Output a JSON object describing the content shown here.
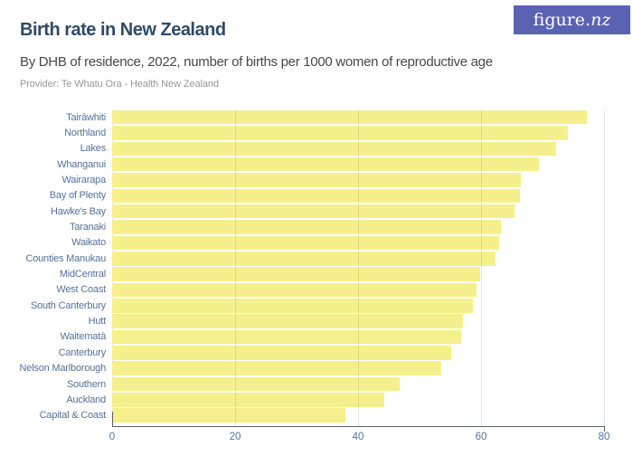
{
  "header": {
    "title": "Birth rate in New Zealand",
    "subtitle": "By DHB of residence, 2022, number of births per 1000 women of reproductive age",
    "provider": "Provider: Te Whatu Ora - Health New Zealand",
    "logo_text_main": "figure.",
    "logo_text_suffix": "nz"
  },
  "colors": {
    "bar": "#F6F08C",
    "title": "#2E4A66",
    "subtitle_text": "#484848",
    "provider_text": "#979797",
    "axis_label": "#54719B",
    "axis_line": "#59616E",
    "gridline": "#E2E2E2",
    "logo_background": "#5A62B4",
    "logo_text": "#FFFFFF"
  },
  "chart_data": {
    "type": "bar",
    "orientation": "horizontal",
    "title": "Birth rate in New Zealand",
    "subtitle": "By DHB of residence, 2022, number of births per 1000 women of reproductive age",
    "xlabel": "",
    "ylabel": "DHB of residence",
    "xlim": [
      0,
      80
    ],
    "xticks": [
      0,
      20,
      40,
      60,
      80
    ],
    "grid": true,
    "legend": false,
    "categories": [
      "Tairāwhiti",
      "Northland",
      "Lakes",
      "Whanganui",
      "Wairarapa",
      "Bay of Plenty",
      "Hawke's Bay",
      "Taranaki",
      "Waikato",
      "Counties Manukau",
      "MidCentral",
      "West Coast",
      "South Canterbury",
      "Hutt",
      "Waitematā",
      "Canterbury",
      "Nelson Marlborough",
      "Southern",
      "Auckland",
      "Capital & Coast"
    ],
    "values": [
      77.2,
      74.1,
      72.2,
      69.4,
      66.5,
      66.3,
      65.4,
      63.3,
      62.9,
      62.4,
      59.8,
      59.2,
      58.6,
      57.1,
      56.8,
      55.1,
      53.5,
      46.7,
      44.3,
      37.9
    ]
  }
}
